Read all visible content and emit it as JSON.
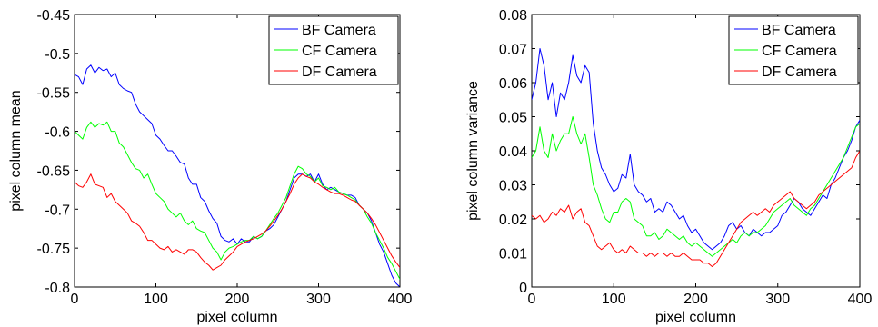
{
  "chart_data": [
    {
      "type": "line",
      "title": "",
      "xlabel": "pixel column",
      "ylabel": "pixel column mean",
      "xlim": [
        0,
        400
      ],
      "ylim": [
        -0.8,
        -0.45
      ],
      "xticks": [
        0,
        100,
        200,
        300,
        400
      ],
      "yticks": [
        -0.8,
        -0.75,
        -0.7,
        -0.65,
        -0.6,
        -0.55,
        -0.5,
        -0.45
      ],
      "xtick_labels": [
        "0",
        "100",
        "200",
        "300",
        "400"
      ],
      "ytick_labels": [
        "-0.8",
        "-0.75",
        "-0.7",
        "-0.65",
        "-0.6",
        "-0.55",
        "-0.5",
        "-0.45"
      ],
      "grid": false,
      "legend_position": "top-right",
      "series": [
        {
          "name": "BF Camera",
          "color": "#0000ff",
          "x": [
            0,
            5,
            10,
            15,
            20,
            25,
            30,
            35,
            40,
            45,
            50,
            55,
            60,
            65,
            70,
            75,
            80,
            85,
            90,
            95,
            100,
            105,
            110,
            115,
            120,
            125,
            130,
            135,
            140,
            145,
            150,
            155,
            160,
            165,
            170,
            175,
            180,
            185,
            190,
            195,
            200,
            205,
            210,
            215,
            220,
            225,
            230,
            235,
            240,
            245,
            250,
            255,
            260,
            265,
            270,
            275,
            280,
            285,
            290,
            295,
            300,
            305,
            310,
            315,
            320,
            325,
            330,
            335,
            340,
            345,
            350,
            355,
            360,
            365,
            370,
            375,
            380,
            385,
            390,
            395,
            400
          ],
          "values": [
            -0.527,
            -0.53,
            -0.54,
            -0.52,
            -0.515,
            -0.525,
            -0.518,
            -0.522,
            -0.52,
            -0.53,
            -0.525,
            -0.54,
            -0.545,
            -0.548,
            -0.55,
            -0.565,
            -0.575,
            -0.58,
            -0.585,
            -0.59,
            -0.605,
            -0.61,
            -0.618,
            -0.625,
            -0.625,
            -0.632,
            -0.64,
            -0.642,
            -0.66,
            -0.668,
            -0.668,
            -0.685,
            -0.69,
            -0.702,
            -0.712,
            -0.718,
            -0.735,
            -0.74,
            -0.742,
            -0.738,
            -0.745,
            -0.738,
            -0.742,
            -0.742,
            -0.735,
            -0.738,
            -0.735,
            -0.728,
            -0.725,
            -0.72,
            -0.71,
            -0.7,
            -0.69,
            -0.675,
            -0.66,
            -0.655,
            -0.655,
            -0.658,
            -0.655,
            -0.665,
            -0.655,
            -0.668,
            -0.675,
            -0.672,
            -0.675,
            -0.678,
            -0.68,
            -0.682,
            -0.682,
            -0.685,
            -0.695,
            -0.7,
            -0.705,
            -0.715,
            -0.73,
            -0.745,
            -0.755,
            -0.77,
            -0.785,
            -0.795,
            -0.8
          ]
        },
        {
          "name": "CF Camera",
          "color": "#00ff00",
          "x": [
            0,
            5,
            10,
            15,
            20,
            25,
            30,
            35,
            40,
            45,
            50,
            55,
            60,
            65,
            70,
            75,
            80,
            85,
            90,
            95,
            100,
            105,
            110,
            115,
            120,
            125,
            130,
            135,
            140,
            145,
            150,
            155,
            160,
            165,
            170,
            175,
            180,
            185,
            190,
            195,
            200,
            205,
            210,
            215,
            220,
            225,
            230,
            235,
            240,
            245,
            250,
            255,
            260,
            265,
            270,
            275,
            280,
            285,
            290,
            295,
            300,
            305,
            310,
            315,
            320,
            325,
            330,
            335,
            340,
            345,
            350,
            355,
            360,
            365,
            370,
            375,
            380,
            385,
            390,
            395,
            400
          ],
          "values": [
            -0.6,
            -0.605,
            -0.61,
            -0.595,
            -0.588,
            -0.595,
            -0.59,
            -0.592,
            -0.588,
            -0.6,
            -0.6,
            -0.615,
            -0.62,
            -0.63,
            -0.64,
            -0.648,
            -0.65,
            -0.66,
            -0.655,
            -0.668,
            -0.68,
            -0.685,
            -0.69,
            -0.7,
            -0.705,
            -0.71,
            -0.705,
            -0.715,
            -0.72,
            -0.715,
            -0.725,
            -0.728,
            -0.73,
            -0.74,
            -0.75,
            -0.755,
            -0.765,
            -0.755,
            -0.75,
            -0.748,
            -0.745,
            -0.742,
            -0.74,
            -0.74,
            -0.735,
            -0.738,
            -0.735,
            -0.728,
            -0.72,
            -0.712,
            -0.705,
            -0.695,
            -0.685,
            -0.67,
            -0.655,
            -0.645,
            -0.648,
            -0.655,
            -0.658,
            -0.665,
            -0.66,
            -0.67,
            -0.672,
            -0.675,
            -0.672,
            -0.678,
            -0.68,
            -0.682,
            -0.685,
            -0.688,
            -0.695,
            -0.7,
            -0.71,
            -0.718,
            -0.73,
            -0.74,
            -0.75,
            -0.762,
            -0.77,
            -0.78,
            -0.79
          ]
        },
        {
          "name": "DF Camera",
          "color": "#ff0000",
          "x": [
            0,
            5,
            10,
            15,
            20,
            25,
            30,
            35,
            40,
            45,
            50,
            55,
            60,
            65,
            70,
            75,
            80,
            85,
            90,
            95,
            100,
            105,
            110,
            115,
            120,
            125,
            130,
            135,
            140,
            145,
            150,
            155,
            160,
            165,
            170,
            175,
            180,
            185,
            190,
            195,
            200,
            205,
            210,
            215,
            220,
            225,
            230,
            235,
            240,
            245,
            250,
            255,
            260,
            265,
            270,
            275,
            280,
            285,
            290,
            295,
            300,
            305,
            310,
            315,
            320,
            325,
            330,
            335,
            340,
            345,
            350,
            355,
            360,
            365,
            370,
            375,
            380,
            385,
            390,
            395,
            400
          ],
          "values": [
            -0.665,
            -0.67,
            -0.672,
            -0.665,
            -0.655,
            -0.668,
            -0.67,
            -0.672,
            -0.685,
            -0.68,
            -0.69,
            -0.695,
            -0.7,
            -0.705,
            -0.715,
            -0.718,
            -0.722,
            -0.73,
            -0.74,
            -0.74,
            -0.745,
            -0.75,
            -0.752,
            -0.748,
            -0.755,
            -0.752,
            -0.755,
            -0.758,
            -0.752,
            -0.752,
            -0.755,
            -0.762,
            -0.768,
            -0.772,
            -0.778,
            -0.775,
            -0.772,
            -0.765,
            -0.76,
            -0.755,
            -0.748,
            -0.745,
            -0.742,
            -0.74,
            -0.738,
            -0.735,
            -0.732,
            -0.728,
            -0.722,
            -0.715,
            -0.708,
            -0.7,
            -0.69,
            -0.68,
            -0.668,
            -0.66,
            -0.655,
            -0.658,
            -0.66,
            -0.665,
            -0.668,
            -0.672,
            -0.675,
            -0.678,
            -0.68,
            -0.68,
            -0.682,
            -0.685,
            -0.688,
            -0.69,
            -0.695,
            -0.7,
            -0.705,
            -0.712,
            -0.72,
            -0.73,
            -0.74,
            -0.75,
            -0.76,
            -0.768,
            -0.775
          ]
        }
      ]
    },
    {
      "type": "line",
      "title": "",
      "xlabel": "pixel column",
      "ylabel": "pixel column variance",
      "xlim": [
        0,
        400
      ],
      "ylim": [
        0,
        0.08
      ],
      "xticks": [
        0,
        100,
        200,
        300,
        400
      ],
      "yticks": [
        0,
        0.01,
        0.02,
        0.03,
        0.04,
        0.05,
        0.06,
        0.07,
        0.08
      ],
      "xtick_labels": [
        "0",
        "100",
        "200",
        "300",
        "400"
      ],
      "ytick_labels": [
        "0",
        "0.01",
        "0.02",
        "0.03",
        "0.04",
        "0.05",
        "0.06",
        "0.07",
        "0.08"
      ],
      "grid": false,
      "legend_position": "top-right",
      "series": [
        {
          "name": "BF Camera",
          "color": "#0000ff",
          "x": [
            0,
            5,
            10,
            15,
            20,
            25,
            30,
            35,
            40,
            45,
            50,
            55,
            60,
            65,
            70,
            75,
            80,
            85,
            90,
            95,
            100,
            105,
            110,
            115,
            120,
            125,
            130,
            135,
            140,
            145,
            150,
            155,
            160,
            165,
            170,
            175,
            180,
            185,
            190,
            195,
            200,
            205,
            210,
            215,
            220,
            225,
            230,
            235,
            240,
            245,
            250,
            255,
            260,
            265,
            270,
            275,
            280,
            285,
            290,
            295,
            300,
            305,
            310,
            315,
            320,
            325,
            330,
            335,
            340,
            345,
            350,
            355,
            360,
            365,
            370,
            375,
            380,
            385,
            390,
            395,
            400
          ],
          "values": [
            0.055,
            0.06,
            0.07,
            0.065,
            0.055,
            0.06,
            0.05,
            0.057,
            0.055,
            0.06,
            0.068,
            0.062,
            0.06,
            0.065,
            0.063,
            0.048,
            0.04,
            0.035,
            0.033,
            0.03,
            0.028,
            0.029,
            0.033,
            0.032,
            0.039,
            0.03,
            0.028,
            0.027,
            0.025,
            0.026,
            0.022,
            0.023,
            0.022,
            0.025,
            0.024,
            0.022,
            0.02,
            0.021,
            0.018,
            0.016,
            0.017,
            0.015,
            0.013,
            0.012,
            0.011,
            0.012,
            0.013,
            0.015,
            0.018,
            0.019,
            0.017,
            0.018,
            0.016,
            0.015,
            0.017,
            0.016,
            0.015,
            0.016,
            0.016,
            0.017,
            0.018,
            0.021,
            0.022,
            0.024,
            0.026,
            0.025,
            0.023,
            0.022,
            0.021,
            0.023,
            0.025,
            0.027,
            0.026,
            0.03,
            0.032,
            0.035,
            0.038,
            0.04,
            0.043,
            0.047,
            0.049
          ]
        },
        {
          "name": "CF Camera",
          "color": "#00ff00",
          "x": [
            0,
            5,
            10,
            15,
            20,
            25,
            30,
            35,
            40,
            45,
            50,
            55,
            60,
            65,
            70,
            75,
            80,
            85,
            90,
            95,
            100,
            105,
            110,
            115,
            120,
            125,
            130,
            135,
            140,
            145,
            150,
            155,
            160,
            165,
            170,
            175,
            180,
            185,
            190,
            195,
            200,
            205,
            210,
            215,
            220,
            225,
            230,
            235,
            240,
            245,
            250,
            255,
            260,
            265,
            270,
            275,
            280,
            285,
            290,
            295,
            300,
            305,
            310,
            315,
            320,
            325,
            330,
            335,
            340,
            345,
            350,
            355,
            360,
            365,
            370,
            375,
            380,
            385,
            390,
            395,
            400
          ],
          "values": [
            0.038,
            0.04,
            0.047,
            0.04,
            0.038,
            0.045,
            0.04,
            0.043,
            0.045,
            0.045,
            0.05,
            0.045,
            0.042,
            0.045,
            0.038,
            0.03,
            0.027,
            0.023,
            0.02,
            0.019,
            0.022,
            0.022,
            0.025,
            0.026,
            0.025,
            0.02,
            0.019,
            0.018,
            0.015,
            0.015,
            0.016,
            0.014,
            0.015,
            0.017,
            0.016,
            0.015,
            0.014,
            0.015,
            0.013,
            0.012,
            0.013,
            0.012,
            0.011,
            0.01,
            0.009,
            0.01,
            0.011,
            0.012,
            0.013,
            0.014,
            0.013,
            0.015,
            0.016,
            0.015,
            0.016,
            0.016,
            0.017,
            0.018,
            0.02,
            0.022,
            0.023,
            0.024,
            0.025,
            0.026,
            0.024,
            0.023,
            0.022,
            0.021,
            0.023,
            0.024,
            0.026,
            0.028,
            0.03,
            0.032,
            0.034,
            0.036,
            0.038,
            0.041,
            0.044,
            0.047,
            0.048
          ]
        },
        {
          "name": "DF Camera",
          "color": "#ff0000",
          "x": [
            0,
            5,
            10,
            15,
            20,
            25,
            30,
            35,
            40,
            45,
            50,
            55,
            60,
            65,
            70,
            75,
            80,
            85,
            90,
            95,
            100,
            105,
            110,
            115,
            120,
            125,
            130,
            135,
            140,
            145,
            150,
            155,
            160,
            165,
            170,
            175,
            180,
            185,
            190,
            195,
            200,
            205,
            210,
            215,
            220,
            225,
            230,
            235,
            240,
            245,
            250,
            255,
            260,
            265,
            270,
            275,
            280,
            285,
            290,
            295,
            300,
            305,
            310,
            315,
            320,
            325,
            330,
            335,
            340,
            345,
            350,
            355,
            360,
            365,
            370,
            375,
            380,
            385,
            390,
            395,
            400
          ],
          "values": [
            0.021,
            0.02,
            0.021,
            0.019,
            0.02,
            0.022,
            0.021,
            0.023,
            0.022,
            0.024,
            0.02,
            0.022,
            0.023,
            0.019,
            0.018,
            0.015,
            0.012,
            0.011,
            0.012,
            0.013,
            0.011,
            0.01,
            0.011,
            0.01,
            0.012,
            0.011,
            0.01,
            0.01,
            0.009,
            0.01,
            0.009,
            0.01,
            0.01,
            0.009,
            0.01,
            0.009,
            0.009,
            0.01,
            0.009,
            0.008,
            0.008,
            0.008,
            0.007,
            0.007,
            0.006,
            0.007,
            0.009,
            0.011,
            0.013,
            0.015,
            0.017,
            0.019,
            0.02,
            0.021,
            0.022,
            0.021,
            0.022,
            0.023,
            0.022,
            0.024,
            0.025,
            0.026,
            0.027,
            0.028,
            0.026,
            0.025,
            0.024,
            0.023,
            0.024,
            0.025,
            0.027,
            0.028,
            0.029,
            0.03,
            0.031,
            0.032,
            0.033,
            0.034,
            0.035,
            0.038,
            0.04
          ]
        }
      ]
    }
  ]
}
